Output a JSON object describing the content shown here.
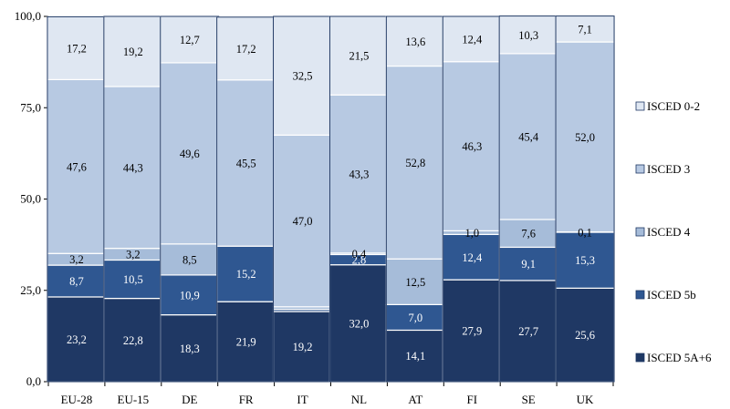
{
  "chart_data": {
    "type": "bar",
    "stacked": true,
    "categories": [
      "EU-28",
      "EU-15",
      "DE",
      "FR",
      "IT",
      "NL",
      "AT",
      "FI",
      "SE",
      "UK"
    ],
    "series": [
      {
        "name": "ISCED 5A+6",
        "values": [
          23.2,
          22.8,
          18.3,
          21.9,
          19.2,
          32.0,
          14.1,
          27.9,
          27.7,
          25.6
        ],
        "labels": [
          "23,2",
          "22,8",
          "18,3",
          "21,9",
          "19,2",
          "32,0",
          "14,1",
          "27,9",
          "27,7",
          "25,6"
        ],
        "color": "#1f3864",
        "label_color": "#ffffff"
      },
      {
        "name": "ISCED 5b",
        "values": [
          8.7,
          10.5,
          10.9,
          15.2,
          0.6,
          2.8,
          7.0,
          12.4,
          9.1,
          15.3
        ],
        "labels": [
          "8,7",
          "10,5",
          "10,9",
          "15,2",
          "",
          "2,8",
          "7,0",
          "12,4",
          "9,1",
          "15,3"
        ],
        "color": "#2f5791",
        "label_color": "#ffffff"
      },
      {
        "name": "ISCED 4",
        "values": [
          3.2,
          3.2,
          8.5,
          0,
          0.7,
          0.4,
          12.5,
          1.0,
          7.6,
          0.1
        ],
        "labels": [
          "3,2",
          "3,2",
          "8,5",
          "",
          "",
          "0,4",
          "12,5",
          "1,0",
          "7,6",
          "0,1"
        ],
        "color": "#a6bcd9",
        "label_color": "#000000"
      },
      {
        "name": "ISCED 3",
        "values": [
          47.6,
          44.3,
          49.6,
          45.5,
          47.0,
          43.3,
          52.8,
          46.3,
          45.4,
          52.0
        ],
        "labels": [
          "47,6",
          "44,3",
          "49,6",
          "45,5",
          "47,0",
          "43,3",
          "52,8",
          "46,3",
          "45,4",
          "52,0"
        ],
        "color": "#b7c9e2",
        "label_color": "#000000"
      },
      {
        "name": "ISCED 0-2",
        "values": [
          17.2,
          19.2,
          12.7,
          17.2,
          32.5,
          21.5,
          13.6,
          12.4,
          10.3,
          7.1
        ],
        "labels": [
          "17,2",
          "19,2",
          "12,7",
          "17,2",
          "32,5",
          "21,5",
          "13,6",
          "12,4",
          "10,3",
          "7,1"
        ],
        "color": "#dfe7f2",
        "label_color": "#000000"
      }
    ],
    "legend_order": [
      "ISCED 0-2",
      "ISCED 3",
      "ISCED 4",
      "ISCED 5b",
      "ISCED 5A+6"
    ],
    "ylim": [
      0,
      100
    ],
    "yticks": [
      0,
      25,
      50,
      75,
      100
    ],
    "ytick_labels": [
      "0,0",
      "25,0",
      "50,0",
      "75,0",
      "100,0"
    ],
    "xlabel": "",
    "ylabel": "",
    "title": "",
    "grid": false,
    "legend_position": "right"
  }
}
